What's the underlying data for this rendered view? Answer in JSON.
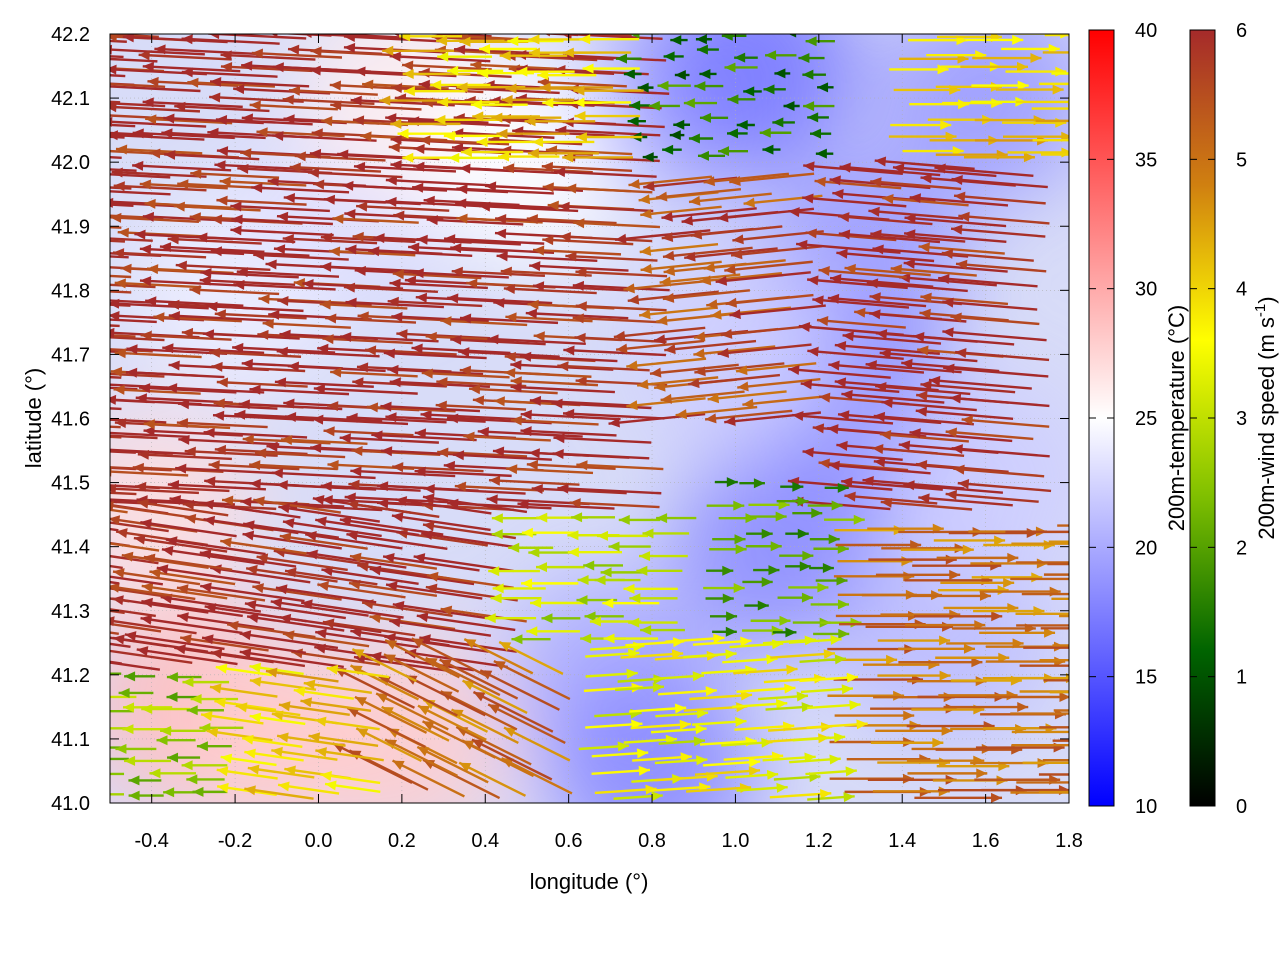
{
  "chart_data": {
    "type": "heatmap",
    "subtype": "vector-field-over-temperature-map",
    "xlabel": "longitude (°)",
    "ylabel": "latitude (°)",
    "xlim": [
      -0.5,
      1.8
    ],
    "ylim": [
      41.0,
      42.2
    ],
    "x_ticks": [
      "-0.4",
      "-0.2",
      "0.0",
      "0.2",
      "0.4",
      "0.6",
      "0.8",
      "1.0",
      "1.2",
      "1.4",
      "1.6",
      "1.8"
    ],
    "x_tick_values": [
      -0.4,
      -0.2,
      0.0,
      0.2,
      0.4,
      0.6,
      0.8,
      1.0,
      1.2,
      1.4,
      1.6,
      1.8
    ],
    "y_ticks": [
      "41.0",
      "41.1",
      "41.2",
      "41.3",
      "41.4",
      "41.5",
      "41.6",
      "41.7",
      "41.8",
      "41.9",
      "42.0",
      "42.1",
      "42.2"
    ],
    "y_tick_values": [
      41.0,
      41.1,
      41.2,
      41.3,
      41.4,
      41.5,
      41.6,
      41.7,
      41.8,
      41.9,
      42.0,
      42.1,
      42.2
    ],
    "grid": true,
    "temperature_colorbar": {
      "label": "200m-temperature (°C)",
      "range": [
        10,
        40
      ],
      "ticks": [
        "10",
        "15",
        "20",
        "25",
        "30",
        "35",
        "40"
      ],
      "tick_values": [
        10,
        15,
        20,
        25,
        30,
        35,
        40
      ],
      "colors": [
        "#0000ff",
        "#ffffff",
        "#ff0000"
      ]
    },
    "wind_colorbar": {
      "label_main": "200m-wind speed (m s",
      "label_sup": "-1",
      "label_end": ")",
      "range": [
        0,
        6
      ],
      "ticks": [
        "0",
        "1",
        "2",
        "3",
        "4",
        "5",
        "6"
      ],
      "tick_values": [
        0,
        1,
        2,
        3,
        4,
        5,
        6
      ],
      "colors": [
        "#000000",
        "#006400",
        "#80c000",
        "#ffff00",
        "#d08010",
        "#a52a2a"
      ]
    },
    "temperature_regions": [
      {
        "lon": -0.3,
        "lat": 41.15,
        "temp": 29
      },
      {
        "lon": -0.1,
        "lat": 41.1,
        "temp": 28
      },
      {
        "lon": 0.2,
        "lat": 41.1,
        "temp": 28
      },
      {
        "lon": -0.4,
        "lat": 41.45,
        "temp": 27
      },
      {
        "lon": -0.2,
        "lat": 41.8,
        "temp": 24
      },
      {
        "lon": 0.1,
        "lat": 41.95,
        "temp": 23
      },
      {
        "lon": 0.2,
        "lat": 42.1,
        "temp": 26
      },
      {
        "lon": 0.5,
        "lat": 42.0,
        "temp": 25
      },
      {
        "lon": 0.9,
        "lat": 42.1,
        "temp": 20
      },
      {
        "lon": 1.05,
        "lat": 42.15,
        "temp": 17
      },
      {
        "lon": 1.3,
        "lat": 41.85,
        "temp": 19
      },
      {
        "lon": 1.3,
        "lat": 41.6,
        "temp": 18
      },
      {
        "lon": 1.1,
        "lat": 41.4,
        "temp": 18
      },
      {
        "lon": 0.7,
        "lat": 41.2,
        "temp": 20
      },
      {
        "lon": 0.8,
        "lat": 41.05,
        "temp": 18
      },
      {
        "lon": 1.5,
        "lat": 41.25,
        "temp": 21
      },
      {
        "lon": 1.6,
        "lat": 41.5,
        "temp": 22
      },
      {
        "lon": 1.6,
        "lat": 42.1,
        "temp": 19
      },
      {
        "lon": 1.0,
        "lat": 41.7,
        "temp": 22
      }
    ],
    "wind_field": [
      {
        "lon_min": -0.5,
        "lon_max": 0.9,
        "lat_min": 41.45,
        "lat_max": 42.2,
        "u": -6,
        "v": 0.3,
        "speed": 6
      },
      {
        "lon_min": 0.9,
        "lon_max": 1.2,
        "lat_min": 41.6,
        "lat_max": 42.0,
        "u": -5,
        "v": -0.5,
        "speed": 5.5
      },
      {
        "lon_min": 1.35,
        "lon_max": 1.8,
        "lat_min": 41.45,
        "lat_max": 42.0,
        "u": -6,
        "v": 0.5,
        "speed": 6
      },
      {
        "lon_min": 0.75,
        "lon_max": 1.25,
        "lat_min": 42.0,
        "lat_max": 42.2,
        "u": -1.5,
        "v": 0,
        "speed": 1.5
      },
      {
        "lon_min": 0.3,
        "lon_max": 0.8,
        "lat_min": 42.0,
        "lat_max": 42.2,
        "u": -3.5,
        "v": 0,
        "speed": 4
      },
      {
        "lon_min": 1.35,
        "lon_max": 1.8,
        "lat_min": 42.0,
        "lat_max": 42.2,
        "u": 3.5,
        "v": 0,
        "speed": 4
      },
      {
        "lon_min": -0.5,
        "lon_max": 0.5,
        "lat_min": 41.2,
        "lat_max": 41.45,
        "u": -5.5,
        "v": 0.8,
        "speed": 6
      },
      {
        "lon_min": 0.5,
        "lon_max": 0.9,
        "lat_min": 41.25,
        "lat_max": 41.45,
        "u": -2.5,
        "v": 0,
        "speed": 3
      },
      {
        "lon_min": 0.9,
        "lon_max": 1.2,
        "lat_min": 41.25,
        "lat_max": 41.5,
        "u": 1.5,
        "v": 0,
        "speed": 2
      },
      {
        "lon_min": 1.2,
        "lon_max": 1.8,
        "lat_min": 41.0,
        "lat_max": 41.45,
        "u": 5,
        "v": 0,
        "speed": 5
      },
      {
        "lon_min": 0.6,
        "lon_max": 1.2,
        "lat_min": 41.0,
        "lat_max": 41.25,
        "u": 3,
        "v": 0.2,
        "speed": 3.5
      },
      {
        "lon_min": 0.2,
        "lon_max": 0.6,
        "lat_min": 41.0,
        "lat_max": 41.2,
        "u": -3,
        "v": 1.5,
        "speed": 5
      },
      {
        "lon_min": -0.5,
        "lon_max": -0.15,
        "lat_min": 41.0,
        "lat_max": 41.2,
        "u": -2.5,
        "v": 0,
        "speed": 2.5
      },
      {
        "lon_min": -0.15,
        "lon_max": 0.2,
        "lat_min": 41.0,
        "lat_max": 41.2,
        "u": -3.5,
        "v": 0.5,
        "speed": 4
      }
    ]
  }
}
